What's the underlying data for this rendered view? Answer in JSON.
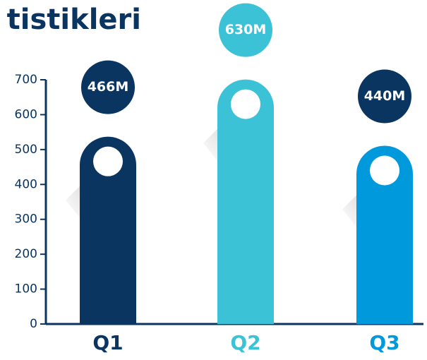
{
  "chart_data": {
    "type": "bar",
    "title": "tistikleri",
    "categories": [
      "Q1",
      "Q2",
      "Q3"
    ],
    "values": [
      466,
      630,
      440
    ],
    "value_labels": [
      "466M",
      "630M",
      "440M"
    ],
    "colors": [
      "#0b3561",
      "#3cc2d6",
      "#0099dc"
    ],
    "value_label_colors": [
      "#0b3561",
      "#3cc2d6",
      "#0b3561"
    ],
    "ylim": [
      0,
      700
    ],
    "yticks": [
      0,
      100,
      200,
      300,
      400,
      500,
      600,
      700
    ]
  }
}
